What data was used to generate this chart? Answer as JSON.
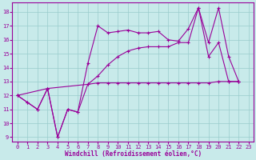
{
  "xlabel": "Windchill (Refroidissement éolien,°C)",
  "bg_color": "#c8eaea",
  "line_color": "#990099",
  "grid_color": "#99cccc",
  "xmin": -0.5,
  "xmax": 23.5,
  "ymin": 8.7,
  "ymax": 18.7,
  "yticks": [
    9,
    10,
    11,
    12,
    13,
    14,
    15,
    16,
    17,
    18
  ],
  "xticks": [
    0,
    1,
    2,
    3,
    4,
    5,
    6,
    7,
    8,
    9,
    10,
    11,
    12,
    13,
    14,
    15,
    16,
    17,
    18,
    19,
    20,
    21,
    22,
    23
  ],
  "lines": [
    {
      "x": [
        0,
        1,
        2,
        3,
        4,
        5,
        6,
        7,
        8,
        9,
        10,
        11,
        12,
        13,
        14,
        15,
        16,
        17,
        18,
        19,
        20,
        21,
        22
      ],
      "y": [
        12.0,
        11.5,
        11.0,
        12.5,
        9.0,
        11.0,
        10.8,
        14.3,
        17.0,
        16.5,
        16.6,
        16.7,
        16.5,
        16.5,
        16.6,
        16.0,
        15.9,
        16.8,
        18.3,
        14.8,
        15.8,
        13.0,
        13.0
      ]
    },
    {
      "x": [
        0,
        3,
        7,
        8,
        9,
        10,
        11,
        12,
        13,
        14,
        15,
        16,
        17,
        18,
        19,
        20,
        21,
        22
      ],
      "y": [
        12.0,
        12.5,
        12.8,
        12.9,
        12.9,
        12.9,
        12.9,
        12.9,
        12.9,
        12.9,
        12.9,
        12.9,
        12.9,
        12.9,
        12.9,
        13.0,
        13.0,
        13.0
      ]
    },
    {
      "x": [
        0,
        1,
        2,
        3,
        4,
        5,
        6,
        7,
        8,
        9,
        10,
        11,
        12,
        13,
        14,
        15,
        16,
        17,
        18,
        19,
        20,
        21,
        22
      ],
      "y": [
        12.0,
        11.5,
        11.0,
        12.5,
        9.0,
        11.0,
        10.8,
        12.8,
        13.4,
        14.2,
        14.8,
        15.2,
        15.4,
        15.5,
        15.5,
        15.5,
        15.8,
        15.8,
        18.3,
        15.8,
        18.3,
        14.8,
        13.0
      ]
    }
  ]
}
